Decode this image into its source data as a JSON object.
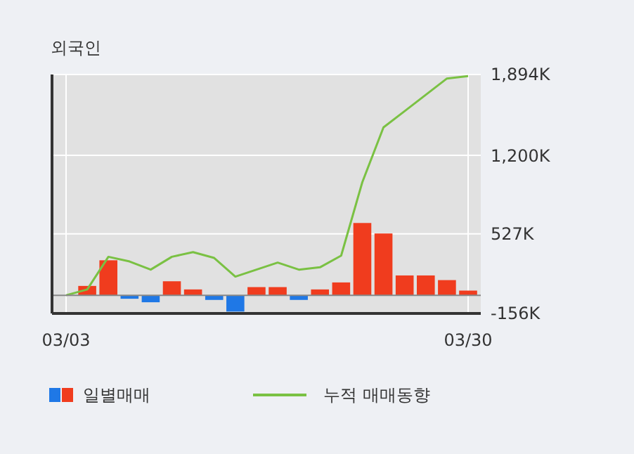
{
  "chart_data": {
    "type": "bar",
    "title": "외국인",
    "categories": [
      "03/03",
      null,
      null,
      null,
      null,
      null,
      null,
      null,
      null,
      null,
      null,
      null,
      null,
      null,
      null,
      null,
      null,
      null,
      null,
      "03/30"
    ],
    "series": [
      {
        "name": "일별매매",
        "colors": [
          "#f03c1e",
          "#f03c1e",
          "#f03c1e",
          "#1f78e6",
          "#1f78e6",
          "#f03c1e",
          "#f03c1e",
          "#1f78e6",
          "#1f78e6",
          "#f03c1e",
          "#f03c1e",
          "#1f78e6",
          "#f03c1e",
          "#f03c1e",
          "#f03c1e",
          "#f03c1e",
          "#f03c1e",
          "#f03c1e",
          "#f03c1e",
          "#f03c1e"
        ],
        "values": [
          0,
          80,
          300,
          -30,
          -60,
          120,
          50,
          -40,
          -140,
          70,
          70,
          -40,
          50,
          110,
          620,
          530,
          170,
          170,
          130,
          40
        ]
      },
      {
        "name": "누적 매매동향",
        "type": "line",
        "color": "#7ac143",
        "values": [
          0,
          50,
          330,
          290,
          220,
          330,
          370,
          320,
          160,
          220,
          280,
          220,
          240,
          340,
          970,
          1440,
          1580,
          1720,
          1860,
          1880
        ]
      }
    ],
    "ylim": [
      -156,
      1894
    ],
    "yticks": [
      {
        "value": -156,
        "label": "-156K"
      },
      {
        "value": 527,
        "label": "527K"
      },
      {
        "value": 1200,
        "label": "1,200K"
      },
      {
        "value": 1894,
        "label": "1,894K"
      }
    ],
    "grid": true,
    "legend": "bottom"
  }
}
